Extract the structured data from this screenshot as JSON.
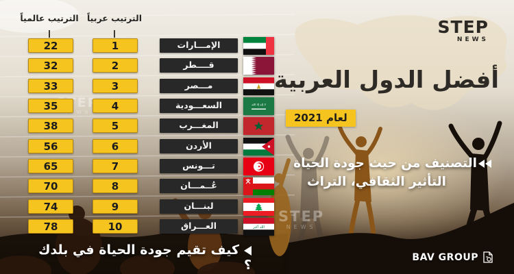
{
  "chart_data": {
    "type": "table",
    "title": "أفضل الدول العربية لعام 2021",
    "subtitle": "التصنيف من حيث جودة الحياة التأثير الثقافي، التراث",
    "columns": [
      "الترتيب عالمياً",
      "الترتيب عربياً",
      "الدولة"
    ],
    "rows": [
      [
        22,
        1,
        "الإمارات"
      ],
      [
        32,
        2,
        "قطر"
      ],
      [
        33,
        3,
        "مصر"
      ],
      [
        35,
        4,
        "السعودية"
      ],
      [
        38,
        5,
        "المغرب"
      ],
      [
        56,
        6,
        "الأردن"
      ],
      [
        65,
        7,
        "تونس"
      ],
      [
        70,
        8,
        "عُمان"
      ],
      [
        74,
        9,
        "لبنان"
      ],
      [
        78,
        10,
        "العراق"
      ]
    ]
  },
  "table": {
    "headers": {
      "global": "الترتيب عالمياً",
      "arab": "الترتيب عربياً"
    },
    "rows": [
      {
        "global": "22",
        "arab": "1",
        "country": "الإمـــارات",
        "flag": "uae"
      },
      {
        "global": "32",
        "arab": "2",
        "country": "قــــطر",
        "flag": "qatar"
      },
      {
        "global": "33",
        "arab": "3",
        "country": "مـــصر",
        "flag": "egypt"
      },
      {
        "global": "35",
        "arab": "4",
        "country": "السعـــودية",
        "flag": "saudi"
      },
      {
        "global": "38",
        "arab": "5",
        "country": "المغـــرب",
        "flag": "morocco"
      },
      {
        "global": "56",
        "arab": "6",
        "country": "الأردن",
        "flag": "jordan"
      },
      {
        "global": "65",
        "arab": "7",
        "country": "تـــونس",
        "flag": "tunisia"
      },
      {
        "global": "70",
        "arab": "8",
        "country": "عُــمـــان",
        "flag": "oman"
      },
      {
        "global": "74",
        "arab": "9",
        "country": "لبنـــان",
        "flag": "lebanon"
      },
      {
        "global": "78",
        "arab": "10",
        "country": "العـــراق",
        "flag": "iraq"
      }
    ]
  },
  "panel": {
    "title": "أفضل الدول العربية",
    "year_badge": "لعام 2021",
    "subtitle_line1": "التصنيف من حيث جودة الحياة",
    "subtitle_line2": "التأثير الثقافي، التراث"
  },
  "footer": {
    "question": "كيف تقيم جودة الحياة في بلدك ؟"
  },
  "brand": {
    "step": "STEP",
    "news": "NEWS",
    "bav": "BAV GROUP"
  },
  "watermark": {
    "step": "STEP",
    "news": "NEWS"
  },
  "colors": {
    "accent_yellow": "#F6C41E",
    "dark_box": "#282828",
    "title": "#2E2A25"
  }
}
